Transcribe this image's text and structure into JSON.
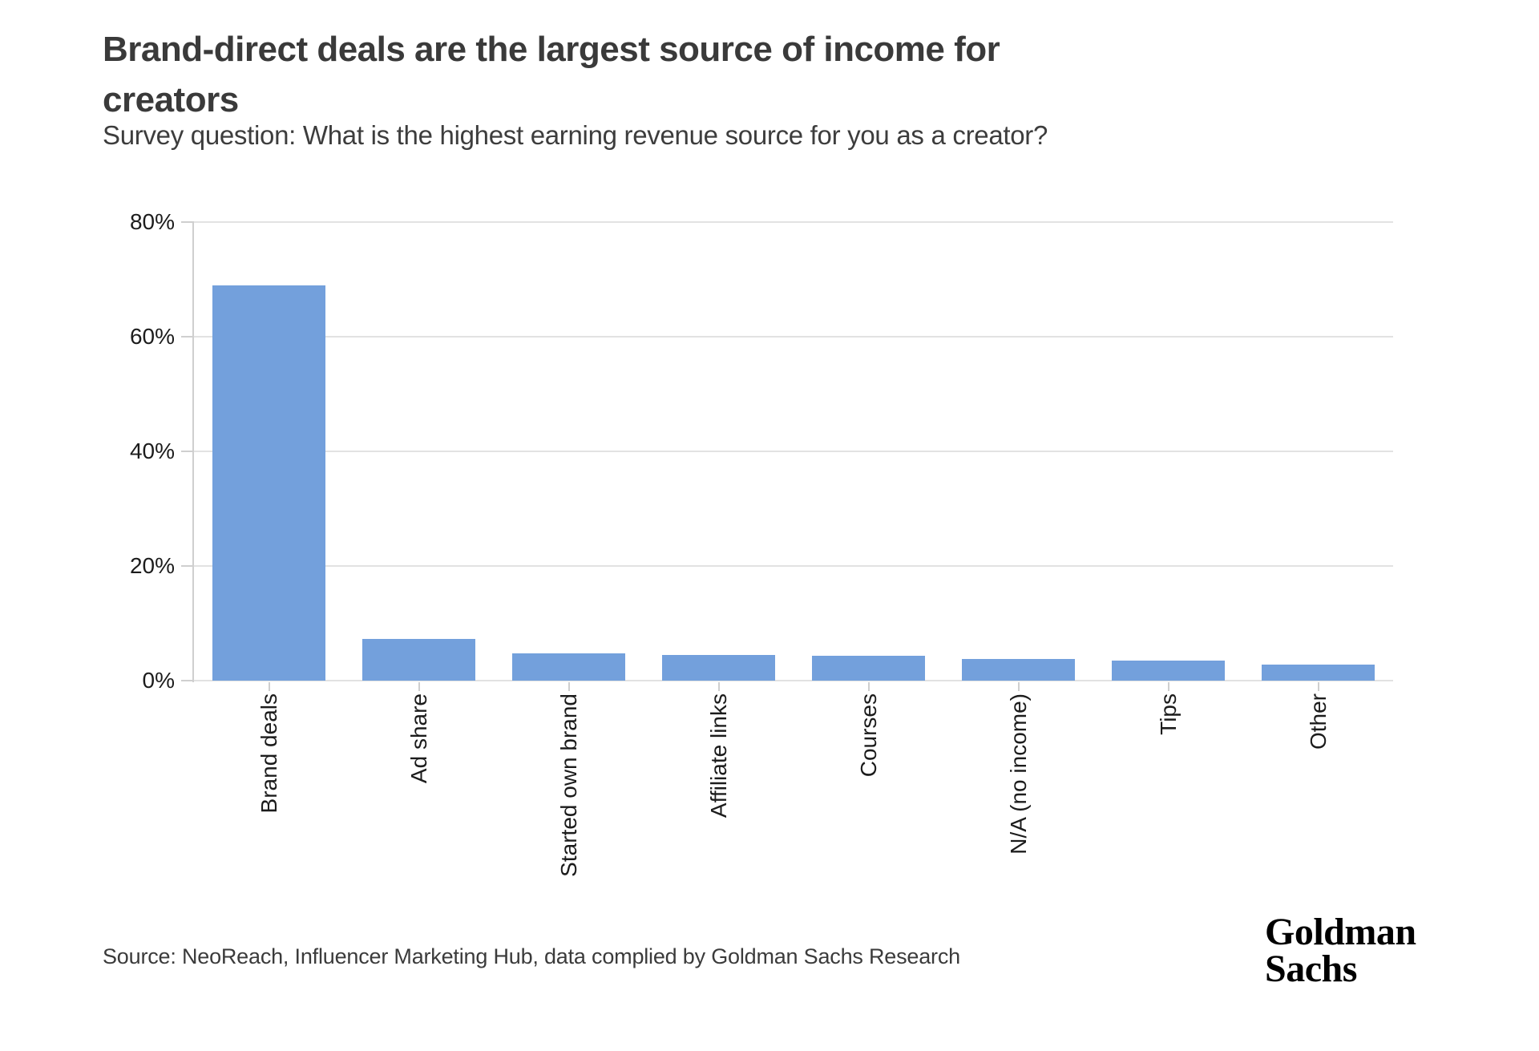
{
  "header": {
    "title": "Brand-direct deals are the largest source of income for creators",
    "title_line1": "Brand-direct deals are the largest source of income for",
    "title_line2": "creators",
    "subtitle": "Survey question: What is the highest earning revenue source for you as a creator?"
  },
  "chart_data": {
    "type": "bar",
    "title": "Brand-direct deals are the largest source of income for creators",
    "subtitle": "Survey question: What is the highest earning revenue source for you as a creator?",
    "categories": [
      "Brand deals",
      "Ad share",
      "Started own brand",
      "Affiliate links",
      "Courses",
      "N/A (no income)",
      "Tips",
      "Other"
    ],
    "values": [
      69,
      7.3,
      4.8,
      4.5,
      4.3,
      3.8,
      3.5,
      2.8
    ],
    "xlabel": "",
    "ylabel": "",
    "ylim": [
      0,
      80
    ],
    "ytick_values": [
      0,
      20,
      40,
      60,
      80
    ],
    "ytick_labels": [
      "0%",
      "20%",
      "40%",
      "60%",
      "80%"
    ],
    "grid": true,
    "legend": null,
    "bar_color": "#73A0DC"
  },
  "footer": {
    "source": "Source: NeoReach, Influencer Marketing Hub, data complied by Goldman Sachs Research",
    "logo_line1": "Goldman",
    "logo_line2": "Sachs"
  },
  "colors": {
    "bar": "#73A0DC",
    "grid": "#e2e2e2",
    "axis": "#cfcfcf",
    "title_text": "#3a3a3a",
    "tick_text": "#1c1c1c"
  }
}
